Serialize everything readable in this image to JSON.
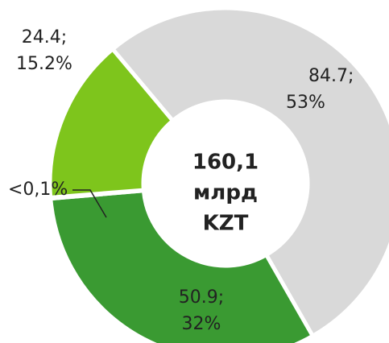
{
  "chart_data": {
    "type": "donut",
    "center_label": [
      "160,1",
      "млрд",
      "KZT"
    ],
    "values": [
      84.7,
      50.9,
      null,
      24.4
    ],
    "value_labels": [
      "84.7;",
      "50.9;",
      null,
      "24.4;"
    ],
    "shares": [
      53,
      32,
      0.1,
      15.2
    ],
    "share_labels": [
      "53%",
      "32%",
      "<0,1%",
      "15.2%"
    ],
    "colors": [
      "#d9d9d9",
      "#3a9a32",
      "#1f6e1f",
      "#7ec51c"
    ]
  }
}
